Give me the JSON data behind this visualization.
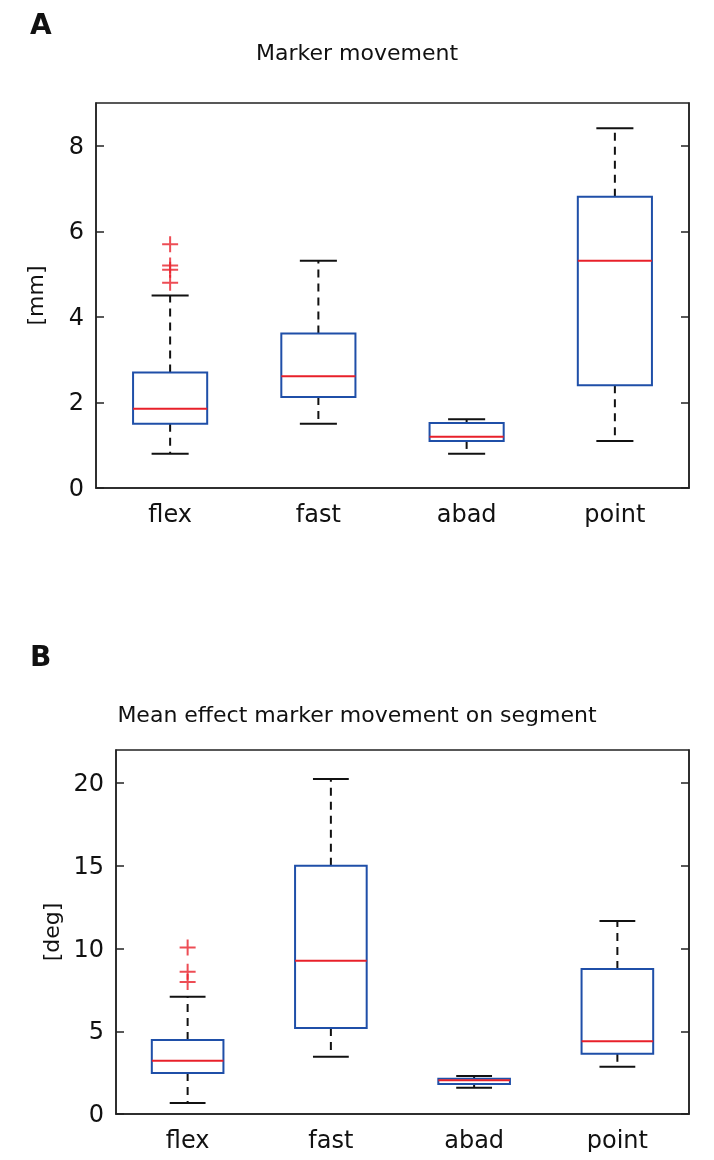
{
  "chart_data": [
    {
      "type": "box",
      "title": "Marker movement",
      "ylabel": "[mm]",
      "annotations": [
        "A"
      ],
      "categories": [
        "flex",
        "fast",
        "abad",
        "point"
      ],
      "ylim": [
        0,
        9
      ],
      "yticks": [
        0,
        2,
        4,
        6,
        8
      ],
      "marker": "cross",
      "line_style": "dashed",
      "series": [
        {
          "color": "#1f4fa8",
          "boxes": [
            {
              "low": 0.8,
              "q1": 1.5,
              "median": 1.85,
              "q3": 2.7,
              "high": 4.5,
              "outliers": [
                4.8,
                5.1,
                5.2,
                5.7
              ]
            },
            {
              "low": 1.5,
              "q1": 2.13,
              "median": 2.61,
              "q3": 3.61,
              "high": 5.31
            },
            {
              "low": 0.8,
              "q1": 1.1,
              "median": 1.2,
              "q3": 1.52,
              "high": 1.61
            },
            {
              "low": 1.1,
              "q1": 2.4,
              "median": 5.31,
              "q3": 6.81,
              "high": 8.41
            }
          ]
        }
      ]
    },
    {
      "type": "box",
      "title": "Mean effect marker movement on segment",
      "ylabel": "[deg]",
      "annotations": [
        "B"
      ],
      "categories": [
        "flex",
        "fast",
        "abad",
        "point"
      ],
      "ylim": [
        0,
        22
      ],
      "yticks": [
        0,
        5,
        10,
        15,
        20
      ],
      "marker": "cross",
      "line_style": "dashed",
      "series": [
        {
          "color": "#1f4fa8",
          "boxes": [
            {
              "low": 0.67,
              "q1": 2.48,
              "median": 3.22,
              "q3": 4.48,
              "high": 7.08,
              "outliers": [
                7.98,
                8.6,
                10.07
              ]
            },
            {
              "low": 3.46,
              "q1": 5.2,
              "median": 9.26,
              "q3": 15.0,
              "high": 20.25
            },
            {
              "low": 1.58,
              "q1": 1.81,
              "median": 2.04,
              "q3": 2.13,
              "high": 2.3
            },
            {
              "low": 2.85,
              "q1": 3.64,
              "median": 4.39,
              "q3": 8.77,
              "high": 11.67
            }
          ]
        }
      ]
    }
  ]
}
